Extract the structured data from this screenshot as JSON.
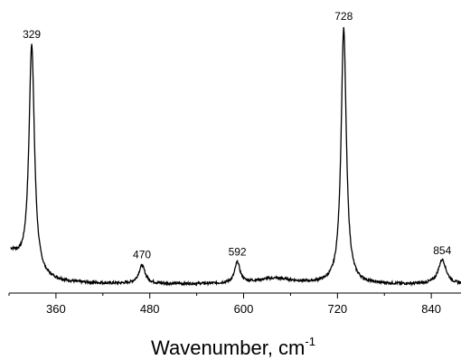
{
  "chart_data": {
    "type": "line",
    "title": "",
    "xlabel": "Wavenumber, cm",
    "xlabel_superscript": "-1",
    "ylabel": "",
    "xlim": [
      300,
      878
    ],
    "ylim": [
      0,
      1.0
    ],
    "xticks": [
      360,
      480,
      600,
      720,
      840
    ],
    "grid": false,
    "legend": "none",
    "peaks": [
      {
        "label": "329",
        "x": 329,
        "y": 0.93
      },
      {
        "label": "470",
        "x": 470,
        "y": 0.085
      },
      {
        "label": "592",
        "x": 592,
        "y": 0.095
      },
      {
        "label": "728",
        "x": 728,
        "y": 1.0
      },
      {
        "label": "854",
        "x": 854,
        "y": 0.1
      }
    ],
    "series": [
      {
        "baseline": 0.012,
        "line_color": "#000000",
        "components": [
          {
            "center": 329,
            "height": 0.88,
            "width": 4.2
          },
          {
            "center": 470,
            "height": 0.07,
            "width": 5
          },
          {
            "center": 592,
            "height": 0.08,
            "width": 4
          },
          {
            "center": 640,
            "height": 0.022,
            "width": 30
          },
          {
            "center": 728,
            "height": 0.98,
            "width": 4
          },
          {
            "center": 854,
            "height": 0.095,
            "width": 6
          },
          {
            "center": 300,
            "height": 0.12,
            "width": 22
          }
        ]
      }
    ]
  }
}
